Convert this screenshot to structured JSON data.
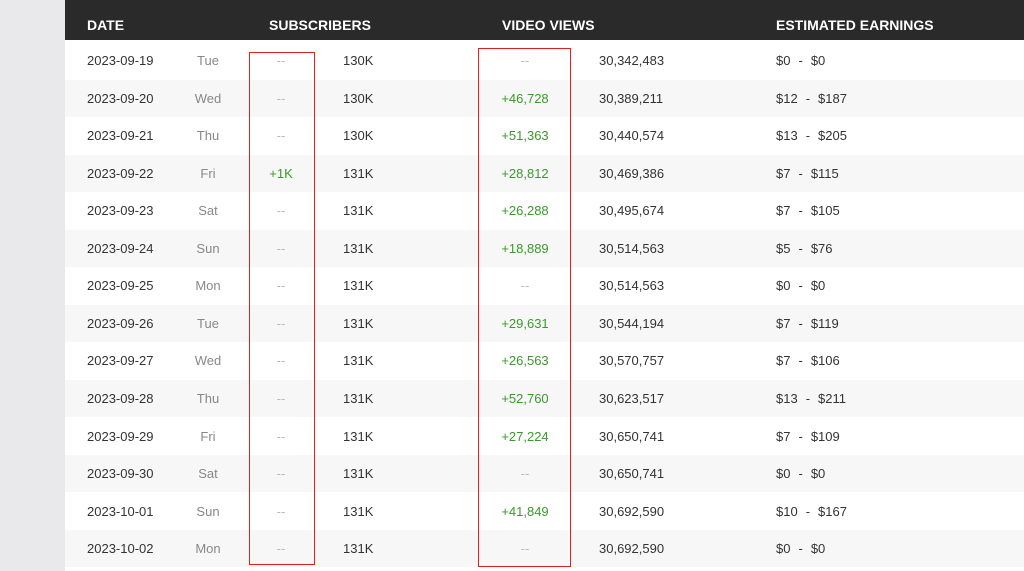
{
  "header": {
    "date": "DATE",
    "subscribers": "SUBSCRIBERS",
    "video_views": "VIDEO VIEWS",
    "earnings": "ESTIMATED EARNINGS"
  },
  "rows": [
    {
      "date": "2023-09-19",
      "day": "Tue",
      "sub_delta": "--",
      "subs": "130K",
      "view_delta": "--",
      "views": "30,342,483",
      "earn_low": "$0",
      "earn_high": "$0"
    },
    {
      "date": "2023-09-20",
      "day": "Wed",
      "sub_delta": "--",
      "subs": "130K",
      "view_delta": "+46,728",
      "views": "30,389,211",
      "earn_low": "$12",
      "earn_high": "$187"
    },
    {
      "date": "2023-09-21",
      "day": "Thu",
      "sub_delta": "--",
      "subs": "130K",
      "view_delta": "+51,363",
      "views": "30,440,574",
      "earn_low": "$13",
      "earn_high": "$205"
    },
    {
      "date": "2023-09-22",
      "day": "Fri",
      "sub_delta": "+1K",
      "subs": "131K",
      "view_delta": "+28,812",
      "views": "30,469,386",
      "earn_low": "$7",
      "earn_high": "$115"
    },
    {
      "date": "2023-09-23",
      "day": "Sat",
      "sub_delta": "--",
      "subs": "131K",
      "view_delta": "+26,288",
      "views": "30,495,674",
      "earn_low": "$7",
      "earn_high": "$105"
    },
    {
      "date": "2023-09-24",
      "day": "Sun",
      "sub_delta": "--",
      "subs": "131K",
      "view_delta": "+18,889",
      "views": "30,514,563",
      "earn_low": "$5",
      "earn_high": "$76"
    },
    {
      "date": "2023-09-25",
      "day": "Mon",
      "sub_delta": "--",
      "subs": "131K",
      "view_delta": "--",
      "views": "30,514,563",
      "earn_low": "$0",
      "earn_high": "$0"
    },
    {
      "date": "2023-09-26",
      "day": "Tue",
      "sub_delta": "--",
      "subs": "131K",
      "view_delta": "+29,631",
      "views": "30,544,194",
      "earn_low": "$7",
      "earn_high": "$119"
    },
    {
      "date": "2023-09-27",
      "day": "Wed",
      "sub_delta": "--",
      "subs": "131K",
      "view_delta": "+26,563",
      "views": "30,570,757",
      "earn_low": "$7",
      "earn_high": "$106"
    },
    {
      "date": "2023-09-28",
      "day": "Thu",
      "sub_delta": "--",
      "subs": "131K",
      "view_delta": "+52,760",
      "views": "30,623,517",
      "earn_low": "$13",
      "earn_high": "$211"
    },
    {
      "date": "2023-09-29",
      "day": "Fri",
      "sub_delta": "--",
      "subs": "131K",
      "view_delta": "+27,224",
      "views": "30,650,741",
      "earn_low": "$7",
      "earn_high": "$109"
    },
    {
      "date": "2023-09-30",
      "day": "Sat",
      "sub_delta": "--",
      "subs": "131K",
      "view_delta": "--",
      "views": "30,650,741",
      "earn_low": "$0",
      "earn_high": "$0"
    },
    {
      "date": "2023-10-01",
      "day": "Sun",
      "sub_delta": "--",
      "subs": "131K",
      "view_delta": "+41,849",
      "views": "30,692,590",
      "earn_low": "$10",
      "earn_high": "$167"
    },
    {
      "date": "2023-10-02",
      "day": "Mon",
      "sub_delta": "--",
      "subs": "131K",
      "view_delta": "--",
      "views": "30,692,590",
      "earn_low": "$0",
      "earn_high": "$0"
    }
  ],
  "earn_separator": "-",
  "colors": {
    "header_bg": "#2a2a2a",
    "positive": "#3a9a2a",
    "highlight_box": "#e02020",
    "row_alt": "#f7f7f7"
  }
}
